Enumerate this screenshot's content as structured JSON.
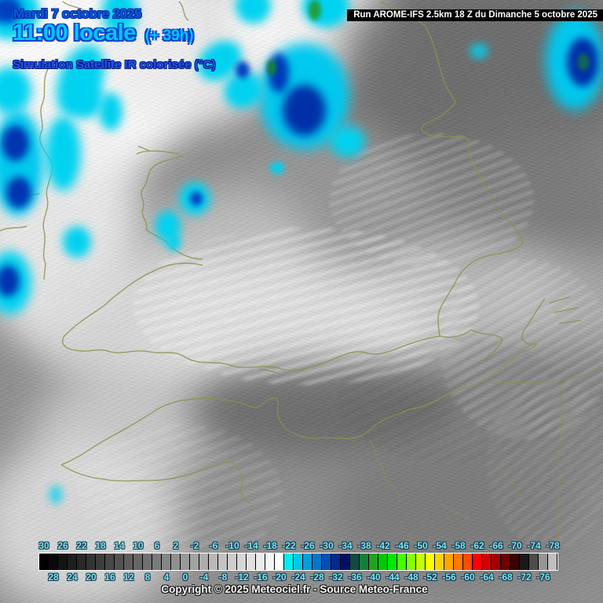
{
  "header": {
    "date": "Mardi 7 octobre 2025",
    "time": "11:00 locale",
    "offset": "(+ 39h)",
    "subtitle": "Simulation Satellite IR colorisée (°C)",
    "run": "Run AROME-IFS 2.5km 18 Z du Dimanche 5 octobre 2025"
  },
  "footer": {
    "copyright": "Copyright © 2025 Meteociel.fr - Source Meteo-France"
  },
  "colors": {
    "title_blue": "#0a5ae0",
    "title_cyan": "#00c8ff",
    "scale_label_cyan": "#7ce8f0",
    "coast_olive": "#8f8f52",
    "run_bar_bg": "#000000",
    "run_bar_text": "#ffffff",
    "cold_cloud_cyan": "#00d2f0",
    "cold_cloud_navy": "#0034b0",
    "cold_cloud_green": "#1f9e44"
  },
  "chart_data": {
    "type": "heatmap",
    "title": "Simulation Satellite IR colorisée (°C)",
    "unit": "°C",
    "legend_position": "bottom",
    "scale_top_labels": [
      30,
      26,
      22,
      18,
      14,
      10,
      6,
      2,
      -2,
      -6,
      -10,
      -14,
      -18,
      -22,
      -26,
      -30,
      -34,
      -38,
      -42,
      -46,
      -50,
      -54,
      -58,
      -62,
      -66,
      -70,
      -74,
      -78
    ],
    "scale_bottom_labels": [
      28,
      24,
      20,
      16,
      12,
      8,
      4,
      0,
      -4,
      -8,
      -12,
      -16,
      -20,
      -24,
      -28,
      -32,
      -36,
      -40,
      -44,
      -48,
      -52,
      -56,
      -60,
      -64,
      -68,
      -72,
      -76
    ],
    "scale_cells": [
      {
        "t": 30,
        "c": "#000000"
      },
      {
        "t": 28,
        "c": "#0a0a0a"
      },
      {
        "t": 26,
        "c": "#141414"
      },
      {
        "t": 24,
        "c": "#1f1f1f"
      },
      {
        "t": 22,
        "c": "#292929"
      },
      {
        "t": 20,
        "c": "#333333"
      },
      {
        "t": 18,
        "c": "#3d3d3d"
      },
      {
        "t": 16,
        "c": "#474747"
      },
      {
        "t": 14,
        "c": "#525252"
      },
      {
        "t": 12,
        "c": "#5c5c5c"
      },
      {
        "t": 10,
        "c": "#666666"
      },
      {
        "t": 8,
        "c": "#707070"
      },
      {
        "t": 6,
        "c": "#7a7a7a"
      },
      {
        "t": 4,
        "c": "#858585"
      },
      {
        "t": 2,
        "c": "#8f8f8f"
      },
      {
        "t": 0,
        "c": "#999999"
      },
      {
        "t": -2,
        "c": "#a3a3a3"
      },
      {
        "t": -4,
        "c": "#adadad"
      },
      {
        "t": -6,
        "c": "#b8b8b8"
      },
      {
        "t": -8,
        "c": "#c2c2c2"
      },
      {
        "t": -10,
        "c": "#cccccc"
      },
      {
        "t": -12,
        "c": "#d6d6d6"
      },
      {
        "t": -14,
        "c": "#e0e0e0"
      },
      {
        "t": -16,
        "c": "#ebebeb"
      },
      {
        "t": -18,
        "c": "#f5f5f5"
      },
      {
        "t": -20,
        "c": "#ffffff"
      },
      {
        "t": -22,
        "c": "#00eeee"
      },
      {
        "t": -24,
        "c": "#00c8e6"
      },
      {
        "t": -26,
        "c": "#009fdc"
      },
      {
        "t": -28,
        "c": "#0077cc"
      },
      {
        "t": -30,
        "c": "#004fb4"
      },
      {
        "t": -32,
        "c": "#002a8c"
      },
      {
        "t": -34,
        "c": "#001064"
      },
      {
        "t": -36,
        "c": "#0f4a42"
      },
      {
        "t": -38,
        "c": "#128038"
      },
      {
        "t": -40,
        "c": "#1ea31e"
      },
      {
        "t": -42,
        "c": "#00c800"
      },
      {
        "t": -44,
        "c": "#00e800"
      },
      {
        "t": -46,
        "c": "#46ff00"
      },
      {
        "t": -48,
        "c": "#87ff00"
      },
      {
        "t": -50,
        "c": "#c3ff00"
      },
      {
        "t": -52,
        "c": "#ffff00"
      },
      {
        "t": -54,
        "c": "#ffd200"
      },
      {
        "t": -56,
        "c": "#ffa500"
      },
      {
        "t": -58,
        "c": "#ff7800"
      },
      {
        "t": -60,
        "c": "#ff4b00"
      },
      {
        "t": -62,
        "c": "#ff0000"
      },
      {
        "t": -64,
        "c": "#d20000"
      },
      {
        "t": -66,
        "c": "#a00000"
      },
      {
        "t": -68,
        "c": "#6e0000"
      },
      {
        "t": -70,
        "c": "#3c0000"
      },
      {
        "t": -72,
        "c": "#191919"
      },
      {
        "t": -74,
        "c": "#4b4b4b"
      },
      {
        "t": -76,
        "c": "#969696"
      },
      {
        "t": -78,
        "c": "#bebebe"
      }
    ]
  }
}
